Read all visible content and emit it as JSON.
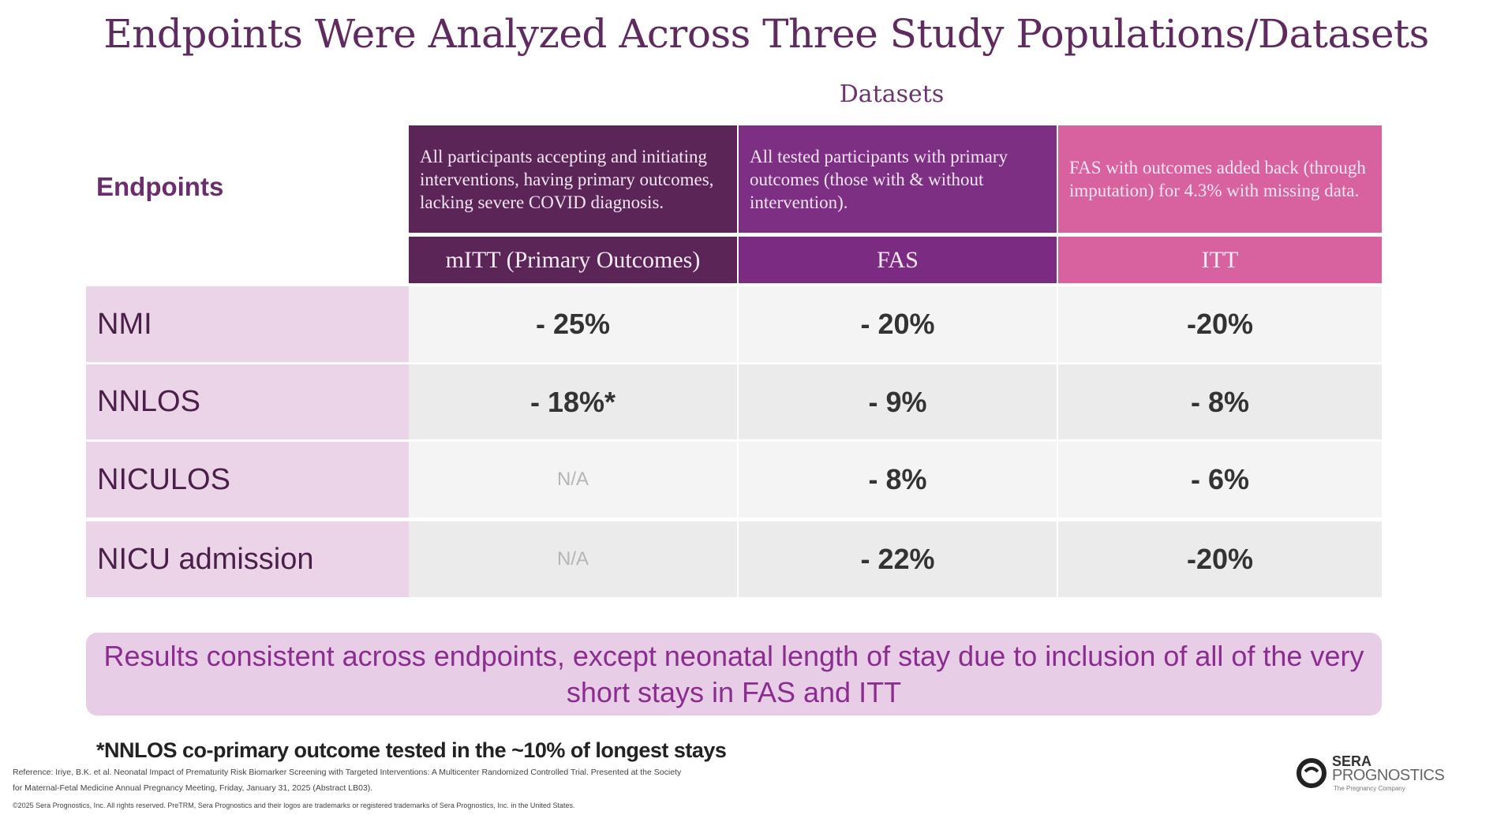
{
  "title": "Endpoints Were Analyzed Across Three Study Populations/Datasets",
  "datasets_label": "Datasets",
  "endpoints_label": "Endpoints",
  "columns": [
    {
      "label": "mITT (Primary Outcomes)",
      "description": "All participants accepting and initiating interventions, having primary outcomes, lacking severe COVID diagnosis.",
      "color": "#5b2558"
    },
    {
      "label": "FAS",
      "description": "All tested participants with primary outcomes (those with & without intervention).",
      "color": "#7d2f84"
    },
    {
      "label": "ITT",
      "description": "FAS with outcomes added back (through imputation) for 4.3% with missing data.",
      "color": "#d8619f"
    }
  ],
  "rows": [
    {
      "endpoint": "NMI",
      "values": [
        "- 25%",
        "- 20%",
        "-20%"
      ]
    },
    {
      "endpoint": "NNLOS",
      "values": [
        "- 18%*",
        "- 9%",
        "- 8%"
      ]
    },
    {
      "endpoint": "NICULOS",
      "values": [
        "N/A",
        "- 8%",
        "- 6%"
      ]
    },
    {
      "endpoint": "NICU admission",
      "values": [
        "N/A",
        "- 22%",
        "-20%"
      ]
    }
  ],
  "banner": "Results consistent across endpoints, except neonatal length of stay due to inclusion of all of the very short stays in FAS and ITT",
  "footnote": "*NNLOS co-primary outcome tested in the ~10% of longest stays",
  "reference_line1": "Reference: Iriye, B.K. et al. Neonatal Impact of Prematurity Risk Biomarker Screening with Targeted Interventions: A Multicenter Randomized Controlled Trial. Presented at the Society",
  "reference_line2": "for Maternal-Fetal Medicine Annual Pregnancy Meeting, Friday, January 31, 2025 (Abstract LB03).",
  "copyright": "©2025 Sera Prognostics, Inc. All rights reserved. PreTRM, Sera Prognostics and their logos are trademarks or registered trademarks of Sera Prognostics, Inc. in the United States.",
  "logo": {
    "line1": "SERA",
    "line2": "PROGNOSTICS",
    "tagline": "The Pregnancy Company"
  }
}
